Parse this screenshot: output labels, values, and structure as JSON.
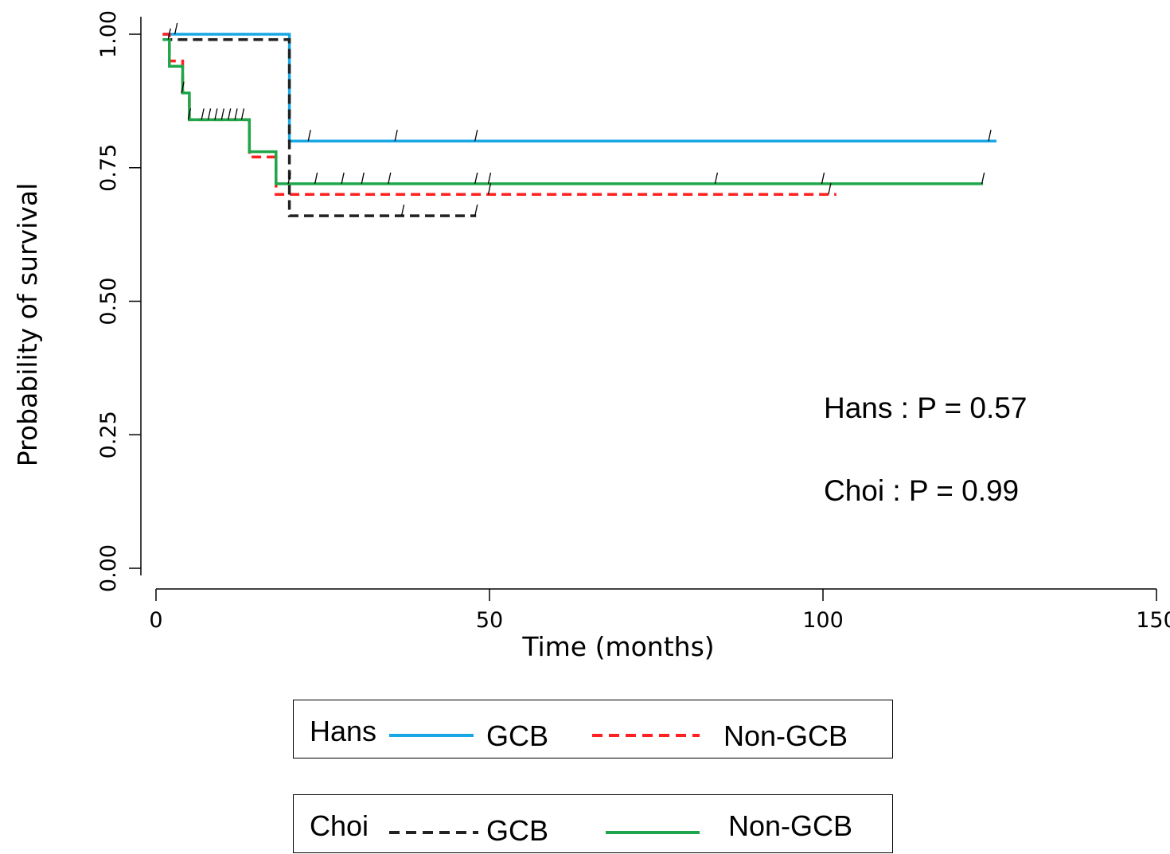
{
  "chart_data": {
    "type": "line",
    "subtype": "kaplan-meier step",
    "xlabel": "Time (months)",
    "ylabel": "Probability of survival",
    "xlim": [
      0,
      150
    ],
    "ylim": [
      0,
      1
    ],
    "xticks": [
      "0",
      "50",
      "100",
      "150"
    ],
    "yticks": [
      "0.00",
      "0.25",
      "0.50",
      "0.75",
      "1.00"
    ],
    "grid": false,
    "annotations": [
      "Hans : P = 0.57",
      "Choi : P = 0.99"
    ],
    "series": [
      {
        "name": "Hans GCB",
        "color": "#1aa7e6",
        "dash": "solid",
        "steps": [
          [
            1,
            1.0
          ],
          [
            20,
            1.0
          ],
          [
            20,
            0.8
          ],
          [
            126,
            0.8
          ]
        ],
        "censored": [
          [
            3,
            1.0
          ],
          [
            23,
            0.8
          ],
          [
            36,
            0.8
          ],
          [
            48,
            0.8
          ],
          [
            125,
            0.8
          ]
        ]
      },
      {
        "name": "Hans Non-GCB",
        "color": "#ff2020",
        "dash": "dashed",
        "steps": [
          [
            1,
            1.0
          ],
          [
            2,
            1.0
          ],
          [
            2,
            0.95
          ],
          [
            4,
            0.95
          ],
          [
            4,
            0.89
          ],
          [
            5,
            0.89
          ],
          [
            5,
            0.84
          ],
          [
            14,
            0.84
          ],
          [
            14,
            0.77
          ],
          [
            18,
            0.77
          ],
          [
            18,
            0.7
          ],
          [
            102,
            0.7
          ]
        ],
        "censored": [
          [
            5,
            0.84
          ],
          [
            8,
            0.84
          ],
          [
            10,
            0.84
          ],
          [
            12,
            0.84
          ],
          [
            50,
            0.7
          ],
          [
            101,
            0.7
          ]
        ]
      },
      {
        "name": "Choi GCB",
        "color": "#222222",
        "dash": "dashed",
        "steps": [
          [
            1,
            0.99
          ],
          [
            20,
            0.99
          ],
          [
            20,
            0.66
          ],
          [
            48,
            0.66
          ]
        ],
        "censored": [
          [
            2,
            0.99
          ],
          [
            37,
            0.66
          ],
          [
            48,
            0.66
          ]
        ]
      },
      {
        "name": "Choi Non-GCB",
        "color": "#1fa64a",
        "dash": "solid",
        "steps": [
          [
            1,
            0.99
          ],
          [
            2,
            0.99
          ],
          [
            2,
            0.94
          ],
          [
            4,
            0.94
          ],
          [
            4,
            0.89
          ],
          [
            5,
            0.89
          ],
          [
            5,
            0.84
          ],
          [
            14,
            0.84
          ],
          [
            14,
            0.78
          ],
          [
            18,
            0.78
          ],
          [
            18,
            0.72
          ],
          [
            124,
            0.72
          ]
        ],
        "censored": [
          [
            4,
            0.89
          ],
          [
            7,
            0.84
          ],
          [
            9,
            0.84
          ],
          [
            11,
            0.84
          ],
          [
            13,
            0.84
          ],
          [
            20,
            0.72
          ],
          [
            24,
            0.72
          ],
          [
            28,
            0.72
          ],
          [
            31,
            0.72
          ],
          [
            35,
            0.72
          ],
          [
            48,
            0.72
          ],
          [
            50,
            0.72
          ],
          [
            84,
            0.72
          ],
          [
            100,
            0.72
          ],
          [
            124,
            0.72
          ]
        ]
      }
    ]
  },
  "legend": {
    "hans": {
      "group": "Hans",
      "gcb": "GCB",
      "non_gcb": "Non-GCB"
    },
    "choi": {
      "group": "Choi",
      "gcb": "GCB",
      "non_gcb": "Non-GCB"
    }
  }
}
